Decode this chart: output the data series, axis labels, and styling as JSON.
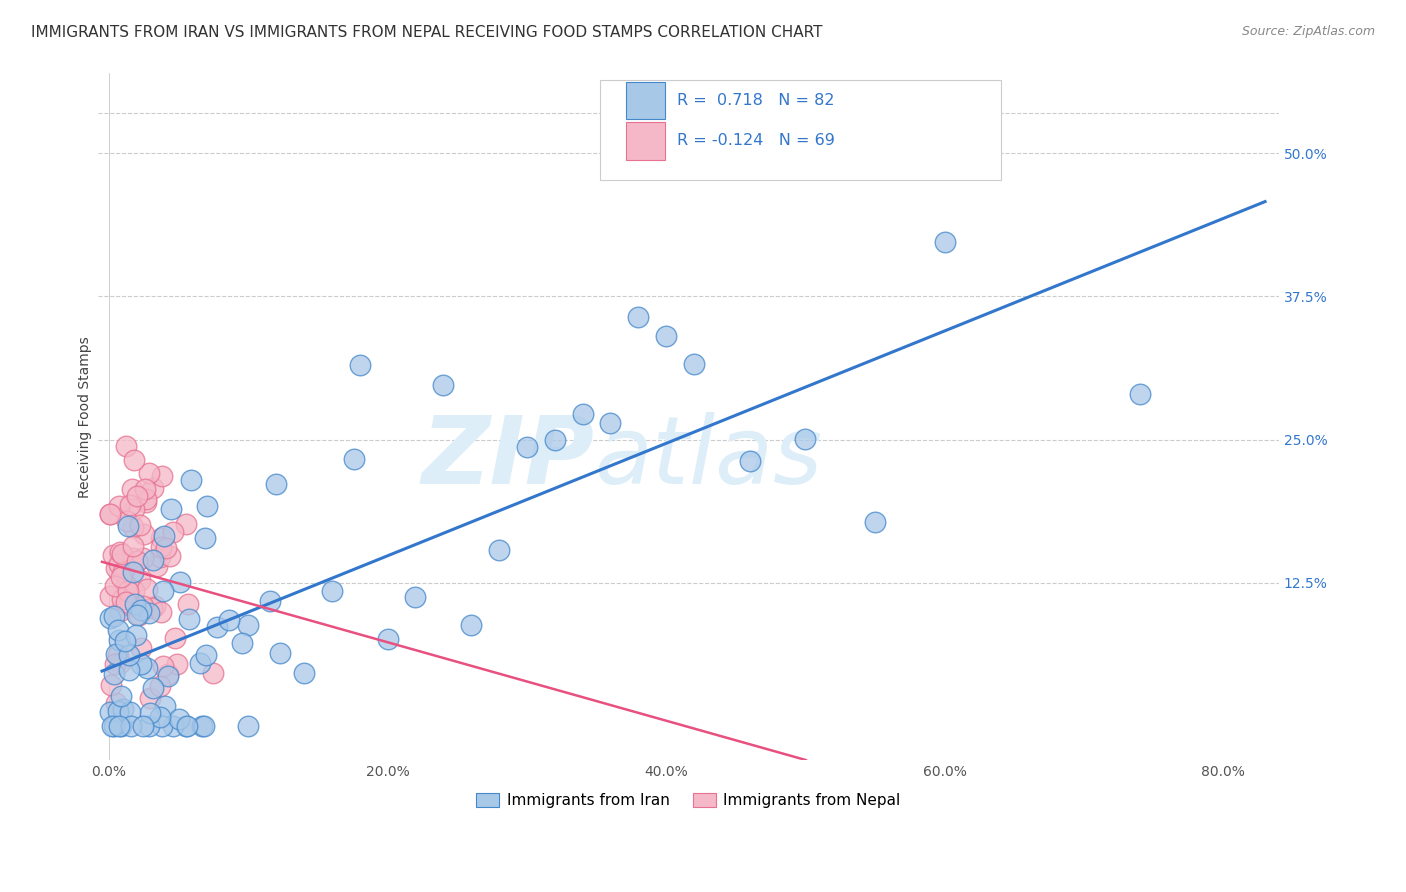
{
  "title": "IMMIGRANTS FROM IRAN VS IMMIGRANTS FROM NEPAL RECEIVING FOOD STAMPS CORRELATION CHART",
  "source": "Source: ZipAtlas.com",
  "ylabel": "Receiving Food Stamps",
  "x_tick_labels": [
    "0.0%",
    "20.0%",
    "40.0%",
    "60.0%",
    "80.0%"
  ],
  "x_tick_vals": [
    0.0,
    0.2,
    0.4,
    0.6,
    0.8
  ],
  "y_tick_labels": [
    "12.5%",
    "25.0%",
    "37.5%",
    "50.0%"
  ],
  "y_tick_vals": [
    0.125,
    0.25,
    0.375,
    0.5
  ],
  "xlim": [
    -0.008,
    0.84
  ],
  "ylim": [
    -0.03,
    0.57
  ],
  "legend_iran_label": "Immigrants from Iran",
  "legend_nepal_label": "Immigrants from Nepal",
  "iran_R": "0.718",
  "iran_N": "82",
  "nepal_R": "-0.124",
  "nepal_N": "69",
  "iran_color": "#a8c8e8",
  "nepal_color": "#f4b8c8",
  "iran_edge_color": "#4488cc",
  "nepal_edge_color": "#e87090",
  "iran_line_color": "#3377cc",
  "nepal_line_color": "#e85080",
  "background_color": "#ffffff",
  "grid_color": "#cccccc",
  "watermark_color": "#ddeef8",
  "title_color": "#333333",
  "source_color": "#888888",
  "tick_color_x": "#555555",
  "tick_color_y": "#3377cc"
}
